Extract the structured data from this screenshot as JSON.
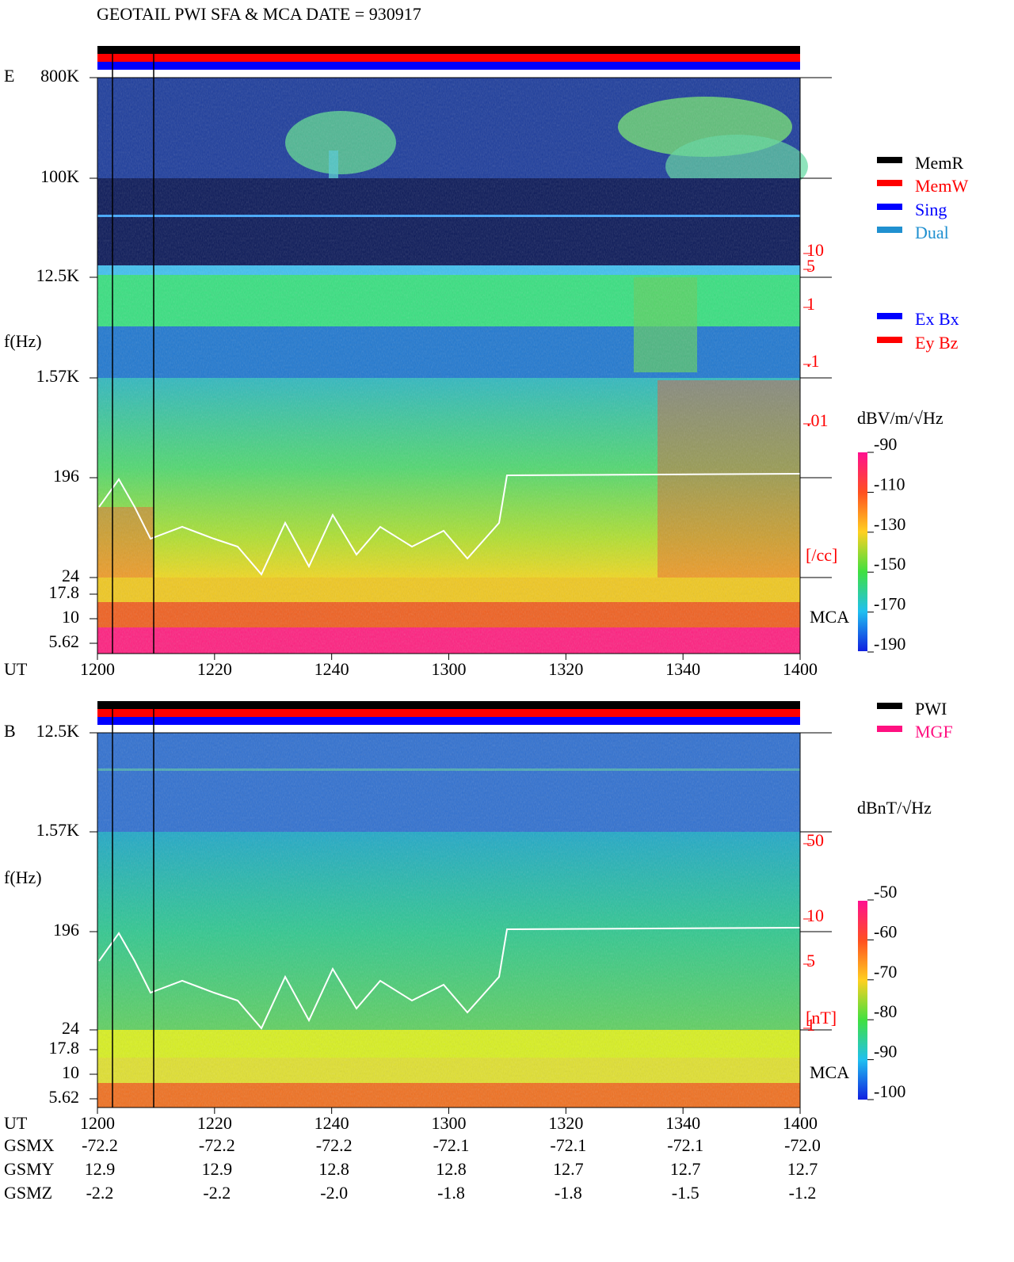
{
  "title": "GEOTAIL   PWI SFA & MCA   DATE = 930917",
  "panels": [
    {
      "label": "E",
      "y_label": "f(Hz)",
      "x_label": "UT",
      "y_ticks": [
        "800K",
        "100K",
        "12.5K",
        "1.57K",
        "196",
        "24",
        "17.8",
        "10",
        "5.62"
      ],
      "x_ticks": [
        "1200",
        "1220",
        "1240",
        "1300",
        "1320",
        "1340",
        "1400"
      ],
      "density_ticks": [
        "10",
        "5",
        "1",
        ".1",
        ".01"
      ],
      "density_unit": "[/cc]",
      "mca_label": "MCA",
      "legend": [
        {
          "name": "MemR",
          "color": "#000000"
        },
        {
          "name": "MemW",
          "color": "#ff0000"
        },
        {
          "name": "Sing",
          "color": "#0000ff"
        },
        {
          "name": "Dual",
          "color": "#2090d0"
        }
      ],
      "mode_legend": [
        {
          "name": "Ex Bx",
          "color": "#0000ff"
        },
        {
          "name": "Ey Bz",
          "color": "#ff0000"
        }
      ],
      "colorbar": {
        "title": "dBV/m/√Hz",
        "ticks": [
          "-90",
          "-110",
          "-130",
          "-150",
          "-170",
          "-190"
        ]
      }
    },
    {
      "label": "B",
      "y_label": "f(Hz)",
      "x_label": "UT",
      "y_ticks": [
        "12.5K",
        "1.57K",
        "196",
        "24",
        "17.8",
        "10",
        "5.62"
      ],
      "x_ticks": [
        "1200",
        "1220",
        "1240",
        "1300",
        "1320",
        "1340",
        "1400"
      ],
      "density_ticks": [
        "50",
        "10",
        "5",
        "1"
      ],
      "density_unit": "[nT]",
      "mca_label": "MCA",
      "legend": [
        {
          "name": "PWI",
          "color": "#000000"
        },
        {
          "name": "MGF",
          "color": "#ff1080"
        }
      ],
      "colorbar": {
        "title": "dBnT/√Hz",
        "ticks": [
          "-50",
          "-60",
          "-70",
          "-80",
          "-90",
          "-100"
        ]
      }
    }
  ],
  "orbit": {
    "rows": [
      {
        "label": "GSMX",
        "values": [
          "-72.2",
          "-72.2",
          "-72.2",
          "-72.1",
          "-72.1",
          "-72.1",
          "-72.0"
        ]
      },
      {
        "label": "GSMY",
        "values": [
          "12.9",
          "12.9",
          "12.8",
          "12.8",
          "12.7",
          "12.7",
          "12.7"
        ]
      },
      {
        "label": "GSMZ",
        "values": [
          "-2.2",
          "-2.2",
          "-2.0",
          "-1.8",
          "-1.8",
          "-1.5",
          "-1.2"
        ]
      }
    ]
  }
}
